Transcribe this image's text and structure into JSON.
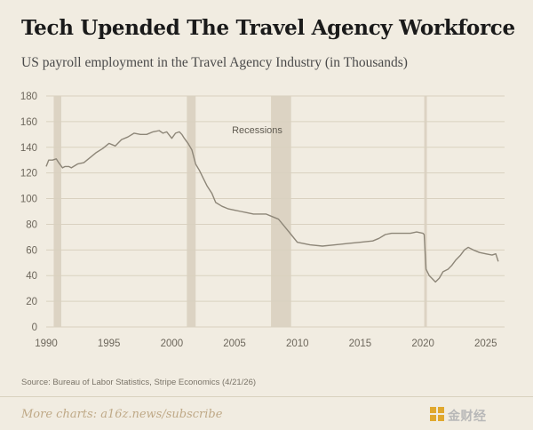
{
  "header": {
    "title": "Tech Upended The Travel Agency Workforce",
    "subtitle": "US payroll employment in the Travel Agency Industry (in Thousands)"
  },
  "footer": {
    "source": "Source: Bureau of Labor Statistics, Stripe Economics (4/21/26)",
    "link": "More charts: a16z.news/subscribe",
    "watermark": "金财经"
  },
  "colors": {
    "line": "#8d8678",
    "recession": "#d8cfbd",
    "grid": "#d9d1c0",
    "tick": "#6d675c"
  },
  "chart_data": {
    "type": "line",
    "title": "Tech Upended The Travel Agency Workforce",
    "subtitle": "US payroll employment in the Travel Agency Industry (in Thousands)",
    "xlabel": "",
    "ylabel": "",
    "xlim": [
      1990,
      2026.5
    ],
    "ylim": [
      0,
      180
    ],
    "x_ticks": [
      1990,
      1995,
      2000,
      2005,
      2010,
      2015,
      2020,
      2025
    ],
    "y_ticks": [
      0,
      20,
      40,
      60,
      80,
      100,
      120,
      140,
      160,
      180
    ],
    "grid": true,
    "recession_label": "Recessions",
    "recessions": [
      [
        1990.6,
        1991.2
      ],
      [
        2001.2,
        2001.9
      ],
      [
        2007.9,
        2009.5
      ],
      [
        2020.1,
        2020.3
      ]
    ],
    "series": [
      {
        "x": [
          1990.0,
          1990.2,
          1990.5,
          1990.8,
          1991.0,
          1991.3,
          1991.5,
          1991.8,
          1992.0,
          1992.5,
          1993.0,
          1993.5,
          1994.0,
          1994.5,
          1995.0,
          1995.5,
          1996.0,
          1996.5,
          1997.0,
          1997.5,
          1998.0,
          1998.5,
          1999.0,
          1999.3,
          1999.6,
          2000.0,
          2000.3,
          2000.6,
          2000.8,
          2001.0,
          2001.3,
          2001.6,
          2001.9,
          2002.2,
          2002.5,
          2002.8,
          2003.2,
          2003.5,
          2004.0,
          2004.5,
          2005.0,
          2005.5,
          2006.0,
          2006.5,
          2007.0,
          2007.5,
          2008.0,
          2008.5,
          2009.0,
          2009.5,
          2010.0,
          2011.0,
          2012.0,
          2013.0,
          2014.0,
          2015.0,
          2016.0,
          2016.5,
          2017.0,
          2017.5,
          2018.0,
          2019.0,
          2019.5,
          2020.0,
          2020.1,
          2020.25,
          2020.5,
          2021.0,
          2021.3,
          2021.6,
          2022.0,
          2022.3,
          2022.6,
          2023.0,
          2023.3,
          2023.6,
          2024.0,
          2024.5,
          2025.0,
          2025.5,
          2025.8,
          2026.0
        ],
        "values": [
          125,
          130,
          130,
          131,
          128,
          124,
          125,
          125,
          124,
          127,
          128,
          132,
          136,
          139,
          143,
          141,
          146,
          148,
          151,
          150,
          150,
          152,
          153,
          151,
          152,
          147,
          151,
          152,
          150,
          147,
          143,
          138,
          127,
          122,
          116,
          110,
          104,
          97,
          94,
          92,
          91,
          90,
          89,
          88,
          88,
          88,
          86,
          84,
          78,
          72,
          66,
          64,
          63,
          64,
          65,
          66,
          67,
          69,
          72,
          73,
          73,
          73,
          74,
          73,
          72,
          45,
          40,
          35,
          38,
          43,
          45,
          48,
          52,
          56,
          60,
          62,
          60,
          58,
          57,
          56,
          57,
          51
        ]
      }
    ]
  }
}
